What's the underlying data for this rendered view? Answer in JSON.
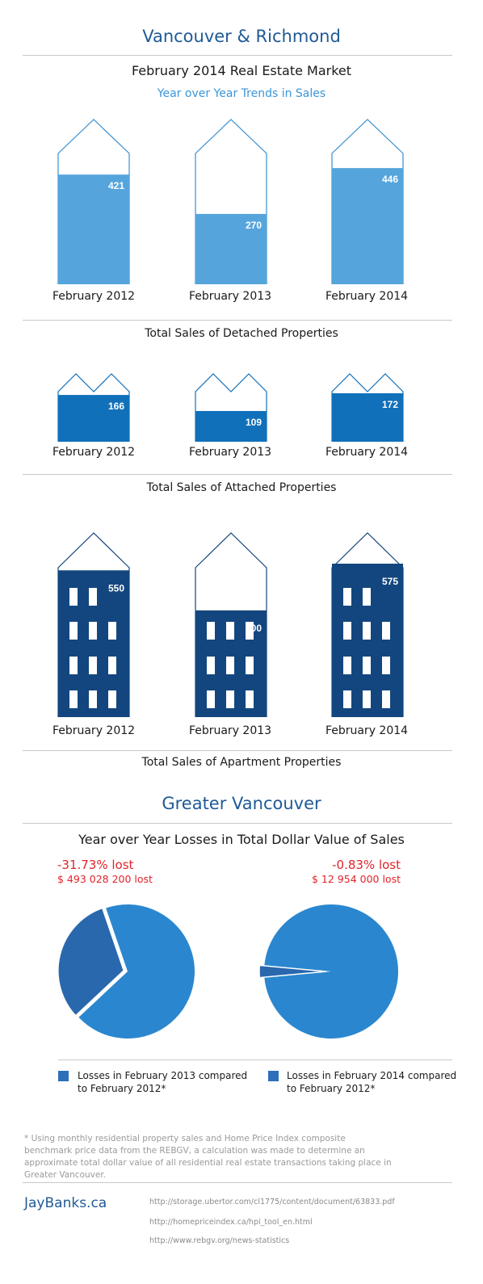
{
  "header": {
    "title": "Vancouver & Richmond",
    "subtitle": "February 2014 Real Estate Market",
    "trend_heading": "Year over Year Trends in Sales"
  },
  "colors": {
    "detached": "#55a5dc",
    "attached": "#1170ba",
    "apartment": "#13467e",
    "outline_detached": "#3a8fd0",
    "outline_attached": "#1170ba",
    "outline_apartment": "#13467e",
    "pie_lost": "#2a68ad",
    "pie_rest": "#2a87cf",
    "loss_text": "#e0232a"
  },
  "chart_data": [
    {
      "type": "bar",
      "categories": [
        "February 2012",
        "February 2013",
        "February 2014"
      ],
      "values": [
        421,
        270,
        446
      ],
      "xlabel": "Total Sales of Detached Properties",
      "ylim": [
        0,
        600
      ]
    },
    {
      "type": "bar",
      "categories": [
        "February 2012",
        "February 2013",
        "February 2014"
      ],
      "values": [
        166,
        109,
        172
      ],
      "xlabel": "Total Sales of Attached Properties",
      "ylim": [
        0,
        240
      ]
    },
    {
      "type": "bar",
      "categories": [
        "February 2012",
        "February 2013",
        "February 2014"
      ],
      "values": [
        550,
        400,
        575
      ],
      "xlabel": "Total Sales of Apartment Properties",
      "ylim": [
        0,
        760
      ]
    },
    {
      "type": "pie",
      "title": "Year over Year Losses in Total Dollar Value of Sales",
      "slices": [
        {
          "label": "Losses in February 2013 compared to February 2012*",
          "value": 31.73
        },
        {
          "label": "",
          "value": 68.27
        }
      ],
      "annotation_pct": "-31.73% lost",
      "annotation_value": "$ 493 028 200 lost"
    },
    {
      "type": "pie",
      "slices": [
        {
          "label": "Losses in February 2014 compared to February 2012*",
          "value": 0.83
        },
        {
          "label": "",
          "value": 99.17
        }
      ],
      "annotation_pct": "-0.83% lost",
      "annotation_value": "$ 12 954 000 lost"
    }
  ],
  "gv": {
    "title": "Greater Vancouver",
    "subtitle": "Year over Year Losses in Total Dollar Value of Sales"
  },
  "legend": {
    "left": "Losses in February 2013 compared to February 2012*",
    "right": "Losses in February 2014 compared to February 2012*"
  },
  "footnote": "* Using monthly residential property sales and Home Price Index composite benchmark price data from the REBGV, a calculation was made to determine an approximate total dollar value of all residential real estate transactions taking place in Greater Vancouver.",
  "footer": {
    "brand": "JayBanks.ca",
    "sources": [
      "http://storage.ubertor.com/cl1775/content/document/63833.pdf",
      "http://homepriceindex.ca/hpi_tool_en.html",
      "http://www.rebgv.org/news-statistics"
    ]
  }
}
